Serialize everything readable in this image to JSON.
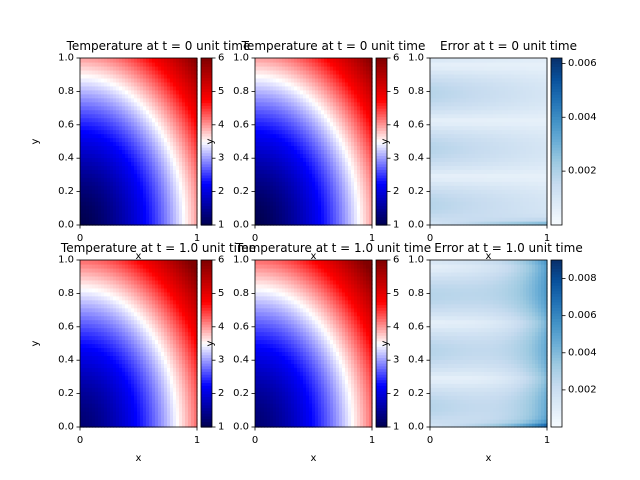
{
  "chart_data": [
    {
      "type": "heatmap",
      "title": "Temperature at t = 0 unit time",
      "xlabel": "x",
      "ylabel": "y",
      "xlim": [
        0,
        1
      ],
      "ylim": [
        0,
        1
      ],
      "x_ticks": [
        "0",
        "1"
      ],
      "y_ticks": [
        "0.0",
        "0.2",
        "0.4",
        "0.6",
        "0.8",
        "1.0"
      ],
      "colormap": "seismic",
      "colorbar_range": [
        1,
        6
      ],
      "colorbar_ticks": [
        "1",
        "2",
        "3",
        "4",
        "5",
        "6"
      ],
      "field": "temperature",
      "t": 0
    },
    {
      "type": "heatmap",
      "title": "Temperature at t = 0 unit time",
      "xlabel": "x",
      "ylabel": "y",
      "xlim": [
        0,
        1
      ],
      "ylim": [
        0,
        1
      ],
      "x_ticks": [
        "0",
        "1"
      ],
      "y_ticks": [
        "0.0",
        "0.2",
        "0.4",
        "0.6",
        "0.8",
        "1.0"
      ],
      "colormap": "seismic",
      "colorbar_range": [
        1,
        6
      ],
      "colorbar_ticks": [
        "1",
        "2",
        "3",
        "4",
        "5",
        "6"
      ],
      "field": "temperature",
      "t": 0
    },
    {
      "type": "heatmap",
      "title": "Error at t = 0 unit time",
      "xlabel": "x",
      "ylabel": "y",
      "xlim": [
        0,
        1
      ],
      "ylim": [
        0,
        1
      ],
      "x_ticks": [
        "0",
        "1"
      ],
      "y_ticks": [
        "0.0",
        "0.2",
        "0.4",
        "0.6",
        "0.8",
        "1.0"
      ],
      "colormap": "Blues",
      "colorbar_range": [
        0,
        0.0062
      ],
      "colorbar_ticks": [
        "0.002",
        "0.004",
        "0.006"
      ],
      "colorbar_tick_values": [
        0.002,
        0.004,
        0.006
      ],
      "field": "error",
      "t": 0
    },
    {
      "type": "heatmap",
      "title": "Temperature at t = 1.0 unit time",
      "xlabel": "x",
      "ylabel": "y",
      "xlim": [
        0,
        1
      ],
      "ylim": [
        0,
        1
      ],
      "x_ticks": [
        "0",
        "1"
      ],
      "y_ticks": [
        "0.0",
        "0.2",
        "0.4",
        "0.6",
        "0.8",
        "1.0"
      ],
      "colormap": "seismic",
      "colorbar_range": [
        1,
        6
      ],
      "colorbar_ticks": [
        "1",
        "2",
        "3",
        "4",
        "5",
        "6"
      ],
      "field": "temperature",
      "t": 1.0
    },
    {
      "type": "heatmap",
      "title": "Temperature at t = 1.0 unit time",
      "xlabel": "x",
      "ylabel": "y",
      "xlim": [
        0,
        1
      ],
      "ylim": [
        0,
        1
      ],
      "x_ticks": [
        "0",
        "1"
      ],
      "y_ticks": [
        "0.0",
        "0.2",
        "0.4",
        "0.6",
        "0.8",
        "1.0"
      ],
      "colormap": "seismic",
      "colorbar_range": [
        1,
        6
      ],
      "colorbar_ticks": [
        "1",
        "2",
        "3",
        "4",
        "5",
        "6"
      ],
      "field": "temperature",
      "t": 1.0
    },
    {
      "type": "heatmap",
      "title": "Error at t = 1.0 unit time",
      "xlabel": "x",
      "ylabel": "y",
      "xlim": [
        0,
        1
      ],
      "ylim": [
        0,
        1
      ],
      "x_ticks": [
        "0",
        "1"
      ],
      "y_ticks": [
        "0.0",
        "0.2",
        "0.4",
        "0.6",
        "0.8",
        "1.0"
      ],
      "colormap": "Blues",
      "colorbar_range": [
        0,
        0.009
      ],
      "colorbar_ticks": [
        "0.002",
        "0.004",
        "0.006",
        "0.008"
      ],
      "colorbar_tick_values": [
        0.002,
        0.004,
        0.006,
        0.008
      ],
      "field": "error",
      "t": 1.0
    }
  ]
}
